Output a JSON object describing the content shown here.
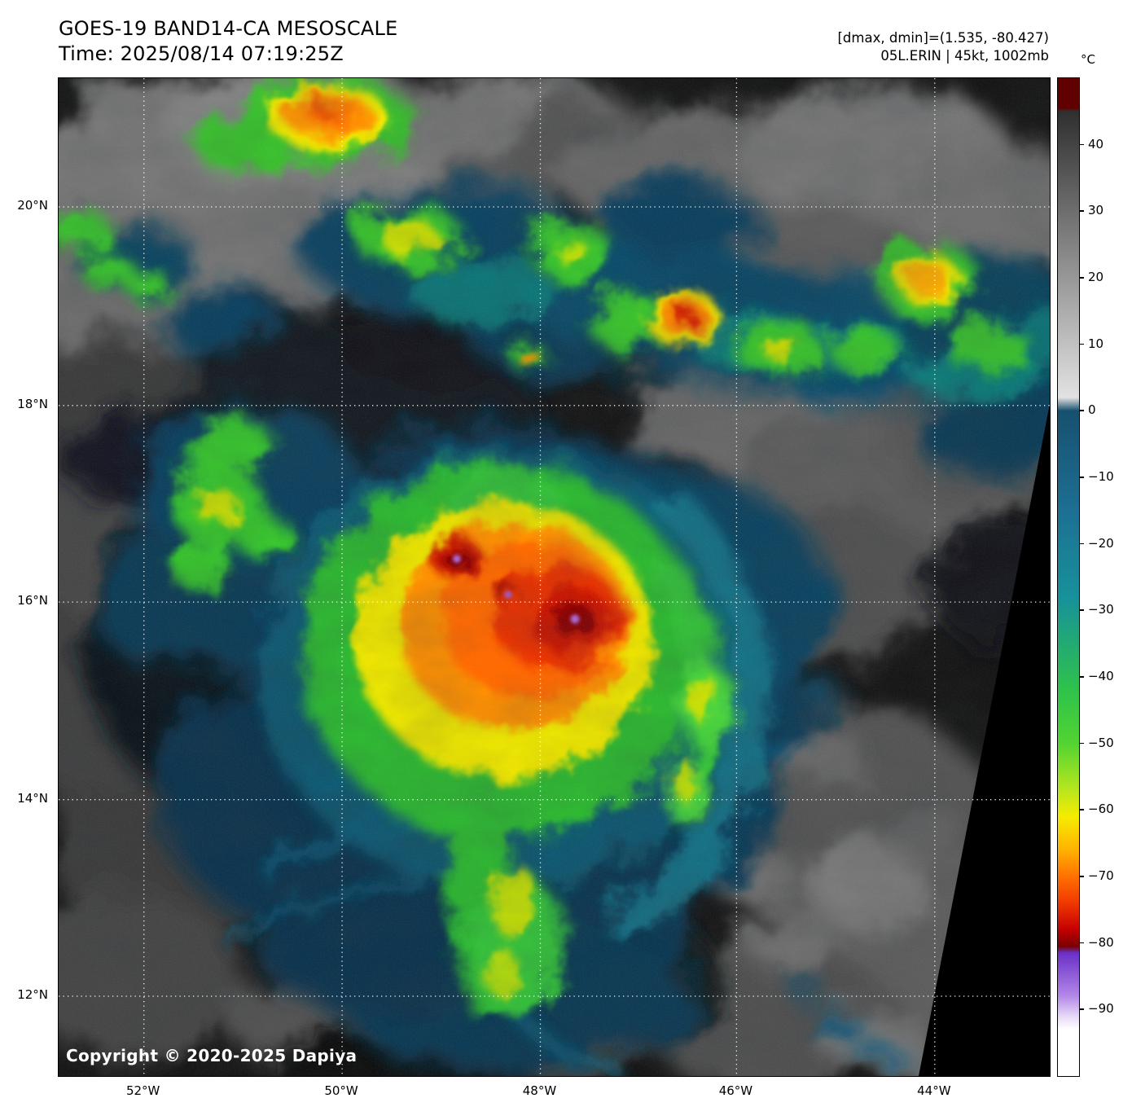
{
  "header": {
    "title_line1": "GOES-19 BAND14-CA MESOSCALE",
    "title_line2": "Time: 2025/08/14 07:19:25Z",
    "info_line1": "[dmax, dmin]=(1.535, -80.427)",
    "info_line2": "05L.ERIN | 45kt, 1002mb"
  },
  "map": {
    "copyright": "Copyright © 2020-2025 Dapiya",
    "lat_ticks": [
      {
        "label": "20°N",
        "f": 0.129
      },
      {
        "label": "18°N",
        "f": 0.328
      },
      {
        "label": "16°N",
        "f": 0.525
      },
      {
        "label": "14°N",
        "f": 0.723
      },
      {
        "label": "12°N",
        "f": 0.92
      }
    ],
    "lon_ticks": [
      {
        "label": "52°W",
        "f": 0.086
      },
      {
        "label": "50°W",
        "f": 0.286
      },
      {
        "label": "48°W",
        "f": 0.486
      },
      {
        "label": "46°W",
        "f": 0.684
      },
      {
        "label": "44°W",
        "f": 0.884
      }
    ]
  },
  "colorbar": {
    "unit": "°C",
    "range": [
      50,
      -100
    ],
    "ticks": [
      {
        "label": "40",
        "t": 40
      },
      {
        "label": "30",
        "t": 30
      },
      {
        "label": "20",
        "t": 20
      },
      {
        "label": "10",
        "t": 10
      },
      {
        "label": "0",
        "t": 0
      },
      {
        "label": "−10",
        "t": -10
      },
      {
        "label": "−20",
        "t": -20
      },
      {
        "label": "−30",
        "t": -30
      },
      {
        "label": "−40",
        "t": -40
      },
      {
        "label": "−50",
        "t": -50
      },
      {
        "label": "−60",
        "t": -60
      },
      {
        "label": "−70",
        "t": -70
      },
      {
        "label": "−80",
        "t": -80
      },
      {
        "label": "−90",
        "t": -90
      }
    ],
    "palette": [
      {
        "t": 50,
        "c": "#600000"
      },
      {
        "t": 45.5,
        "c": "#600000"
      },
      {
        "t": 45,
        "c": "#2f2f2f"
      },
      {
        "t": 2,
        "c": "#e2e2e2"
      },
      {
        "t": 0,
        "c": "#17506f"
      },
      {
        "t": -15,
        "c": "#1d6f93"
      },
      {
        "t": -28,
        "c": "#17919b"
      },
      {
        "t": -42,
        "c": "#2fc24b"
      },
      {
        "t": -50,
        "c": "#52d431"
      },
      {
        "t": -57,
        "c": "#b8e61e"
      },
      {
        "t": -61,
        "c": "#f5ec00"
      },
      {
        "t": -66,
        "c": "#ffb300"
      },
      {
        "t": -70,
        "c": "#ff7100"
      },
      {
        "t": -74,
        "c": "#f03800"
      },
      {
        "t": -78,
        "c": "#c40000"
      },
      {
        "t": -80.5,
        "c": "#7a0000"
      },
      {
        "t": -81.5,
        "c": "#6a30c8"
      },
      {
        "t": -88,
        "c": "#b388e8"
      },
      {
        "t": -91,
        "c": "#e6d9f7"
      },
      {
        "t": -93,
        "c": "#ffffff"
      },
      {
        "t": -100,
        "c": "#ffffff"
      }
    ]
  }
}
